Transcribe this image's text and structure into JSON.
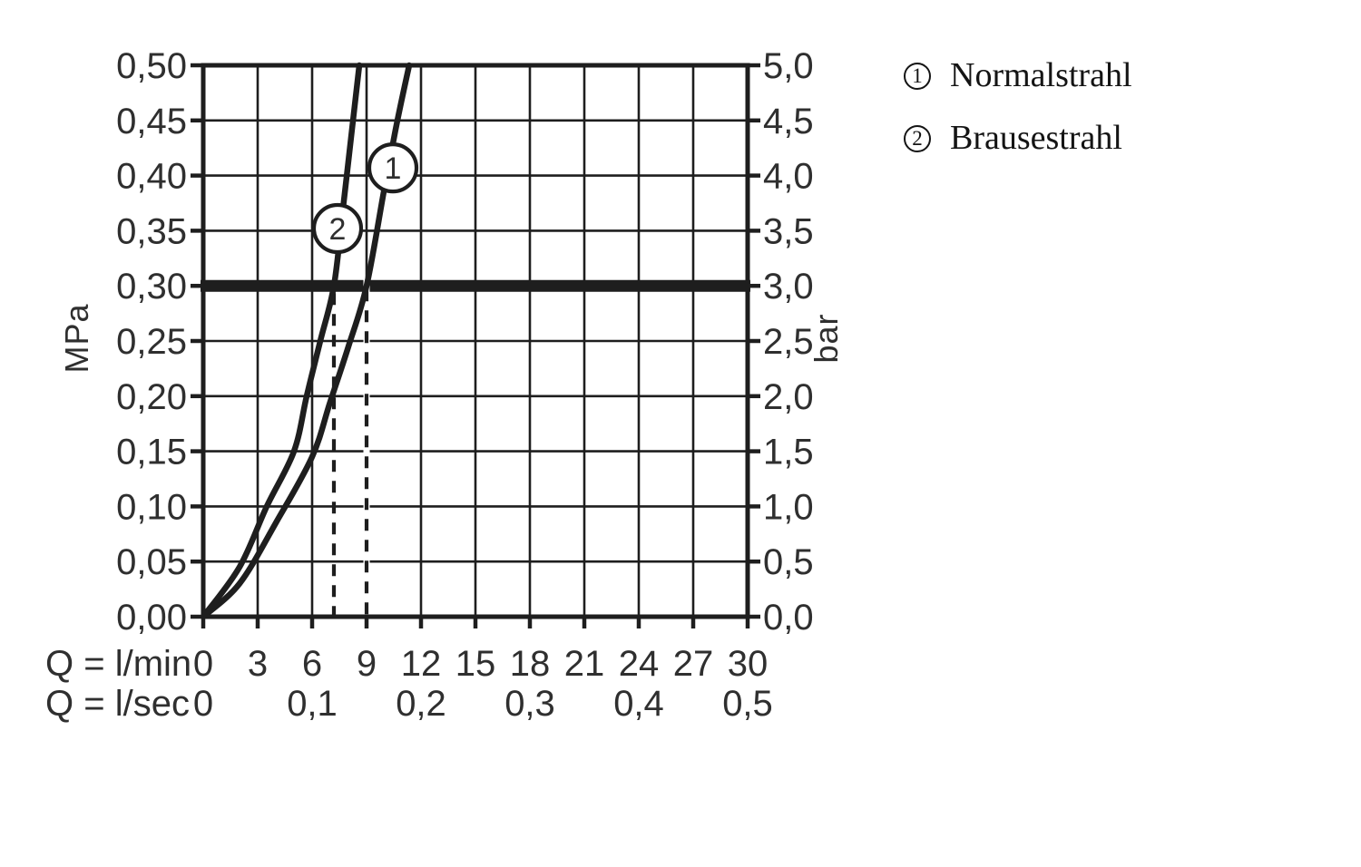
{
  "chart_data": {
    "type": "line",
    "title": "",
    "x_axis": {
      "row1_label": "Q = l/min",
      "row2_label": "Q = l/sec",
      "ticks_lmin": [
        "0",
        "3",
        "6",
        "9",
        "12",
        "15",
        "18",
        "21",
        "24",
        "27",
        "30"
      ],
      "ticks_lsec": [
        {
          "label": "0",
          "lmin": 0
        },
        {
          "label": "0,1",
          "lmin": 6
        },
        {
          "label": "0,2",
          "lmin": 12
        },
        {
          "label": "0,3",
          "lmin": 18
        },
        {
          "label": "0,4",
          "lmin": 24
        },
        {
          "label": "0,5",
          "lmin": 30
        }
      ],
      "range_lmin": [
        0,
        30
      ]
    },
    "y_axis_left": {
      "label": "MPa",
      "ticks": [
        "0,00",
        "0,05",
        "0,10",
        "0,15",
        "0,20",
        "0,25",
        "0,30",
        "0,35",
        "0,40",
        "0,45",
        "0,50"
      ],
      "range_mpa": [
        0,
        0.5
      ]
    },
    "y_axis_right": {
      "label": "bar",
      "ticks": [
        "0,0",
        "0,5",
        "1,0",
        "1,5",
        "2,0",
        "2,5",
        "3,0",
        "3,5",
        "4,0",
        "4,5",
        "5,0"
      ],
      "range_bar": [
        0,
        5
      ]
    },
    "grid": true,
    "reference_line": {
      "p_mpa": 0.3,
      "p_bar": 3.0
    },
    "drop_lines_lmin": {
      "brausestrahl": 7.2,
      "normalstrahl": 9.0
    },
    "series": [
      {
        "id": "1",
        "name": "Normalstrahl",
        "points_q_p": [
          [
            0,
            0
          ],
          [
            2,
            0.03
          ],
          [
            4,
            0.085
          ],
          [
            6,
            0.145
          ],
          [
            7,
            0.195
          ],
          [
            8,
            0.245
          ],
          [
            9,
            0.3
          ],
          [
            10,
            0.39
          ],
          [
            10.7,
            0.45
          ],
          [
            11.35,
            0.5
          ]
        ],
        "marker": {
          "symbol": "1",
          "q_lmin": 10.45,
          "p_mpa": 0.407
        }
      },
      {
        "id": "2",
        "name": "Brausestrahl",
        "points_q_p": [
          [
            0,
            0
          ],
          [
            2,
            0.045
          ],
          [
            3.5,
            0.1
          ],
          [
            5,
            0.15
          ],
          [
            5.7,
            0.2
          ],
          [
            6.45,
            0.25
          ],
          [
            7.2,
            0.3
          ],
          [
            7.7,
            0.37
          ],
          [
            8.15,
            0.435
          ],
          [
            8.6,
            0.5
          ]
        ],
        "marker": {
          "symbol": "2",
          "q_lmin": 7.4,
          "p_mpa": 0.352
        }
      }
    ],
    "legend": [
      {
        "symbol": "1",
        "label": "Normalstrahl"
      },
      {
        "symbol": "2",
        "label": "Brausestrahl"
      }
    ]
  },
  "colors": {
    "line": "#1e1e1e",
    "tick_text": "#2f2f2f",
    "legend_text": "#141414",
    "background": "#ffffff",
    "marker_fill": "#ffffff"
  }
}
